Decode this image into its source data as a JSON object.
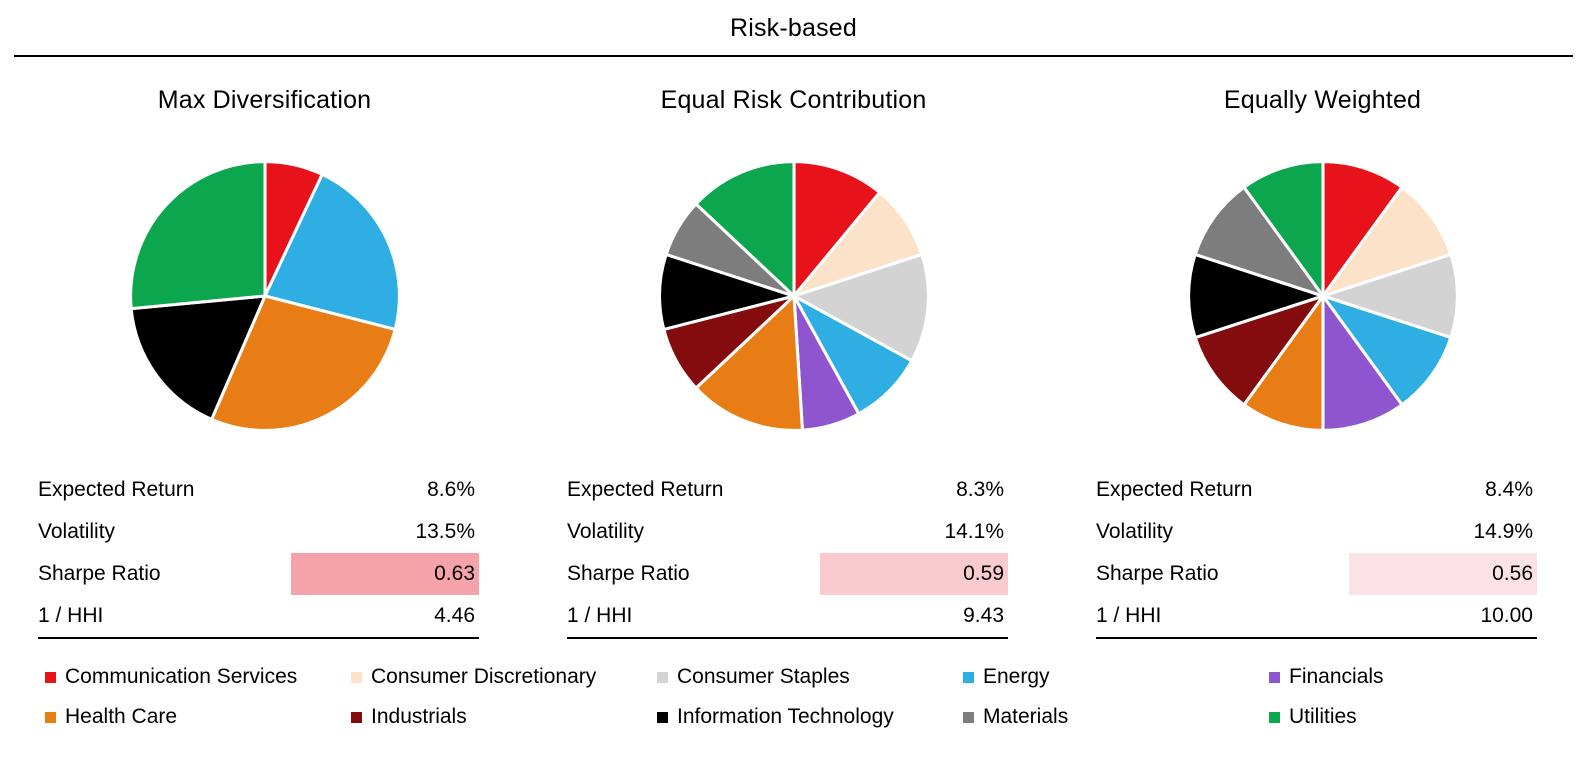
{
  "header": {
    "title": "Risk-based"
  },
  "stats_labels": {
    "expected_return": "Expected Return",
    "volatility": "Volatility",
    "sharpe_ratio": "Sharpe Ratio",
    "inv_hhi": "1 / HHI"
  },
  "panels": [
    {
      "subtitle": "Max Diversification",
      "stats": {
        "expected_return": "8.6%",
        "volatility": "13.5%",
        "sharpe_ratio": "0.63",
        "inv_hhi": "4.46"
      },
      "sharpe_highlight": "#F5A3A8"
    },
    {
      "subtitle": "Equal Risk Contribution",
      "stats": {
        "expected_return": "8.3%",
        "volatility": "14.1%",
        "sharpe_ratio": "0.59",
        "inv_hhi": "9.43"
      },
      "sharpe_highlight": "#FACBCE"
    },
    {
      "subtitle": "Equally Weighted",
      "stats": {
        "expected_return": "8.4%",
        "volatility": "14.9%",
        "sharpe_ratio": "0.56",
        "inv_hhi": "10.00"
      },
      "sharpe_highlight": "#FCE2E6"
    }
  ],
  "sectors": {
    "Communication Services": "#E8131A",
    "Consumer Discretionary": "#FBE2C8",
    "Consumer Staples": "#D3D3D3",
    "Energy": "#2FAEE4",
    "Financials": "#8E55CE",
    "Health Care": "#E87D16",
    "Industrials": "#840C0E",
    "Information Technology": "#000000",
    "Materials": "#7D7D7D",
    "Utilities": "#0BA64E"
  },
  "legend": {
    "items": [
      {
        "label": "Communication Services",
        "color": "#E8131A"
      },
      {
        "label": "Consumer Discretionary",
        "color": "#FBE2C8"
      },
      {
        "label": "Consumer Staples",
        "color": "#D3D3D3"
      },
      {
        "label": "Energy",
        "color": "#2FAEE4"
      },
      {
        "label": "Financials",
        "color": "#8E55CE"
      },
      {
        "label": "Health Care",
        "color": "#E87D16"
      },
      {
        "label": "Industrials",
        "color": "#840C0E"
      },
      {
        "label": "Information Technology",
        "color": "#000000"
      },
      {
        "label": "Materials",
        "color": "#7D7D7D"
      },
      {
        "label": "Utilities",
        "color": "#0BA64E"
      }
    ]
  },
  "chart_data": [
    {
      "type": "pie",
      "title": "Max Diversification",
      "labels": [
        "Communication Services",
        "Energy",
        "Health Care",
        "Information Technology",
        "Utilities"
      ],
      "values": [
        7,
        22,
        27.5,
        17,
        26.5
      ],
      "value_unit": "portfolio weight %, estimated from slice angles",
      "start_angle_deg": 0,
      "direction": "clockwise",
      "stats": {
        "expected_return_pct": 8.6,
        "volatility_pct": 13.5,
        "sharpe_ratio": 0.63,
        "inverse_hhi": 4.46
      }
    },
    {
      "type": "pie",
      "title": "Equal Risk Contribution",
      "labels": [
        "Communication Services",
        "Consumer Discretionary",
        "Consumer Staples",
        "Energy",
        "Financials",
        "Health Care",
        "Industrials",
        "Information Technology",
        "Materials",
        "Utilities"
      ],
      "values": [
        11,
        9,
        13,
        9,
        7,
        14,
        8,
        9,
        7,
        13
      ],
      "value_unit": "portfolio weight %, estimated from slice angles",
      "start_angle_deg": 0,
      "direction": "clockwise",
      "stats": {
        "expected_return_pct": 8.3,
        "volatility_pct": 14.1,
        "sharpe_ratio": 0.59,
        "inverse_hhi": 9.43
      }
    },
    {
      "type": "pie",
      "title": "Equally Weighted",
      "labels": [
        "Communication Services",
        "Consumer Discretionary",
        "Consumer Staples",
        "Energy",
        "Financials",
        "Health Care",
        "Industrials",
        "Information Technology",
        "Materials",
        "Utilities"
      ],
      "values": [
        10,
        10,
        10,
        10,
        10,
        10,
        10,
        10,
        10,
        10
      ],
      "value_unit": "portfolio weight %",
      "start_angle_deg": 0,
      "direction": "clockwise",
      "stats": {
        "expected_return_pct": 8.4,
        "volatility_pct": 14.9,
        "sharpe_ratio": 0.56,
        "inverse_hhi": 10.0
      }
    }
  ]
}
